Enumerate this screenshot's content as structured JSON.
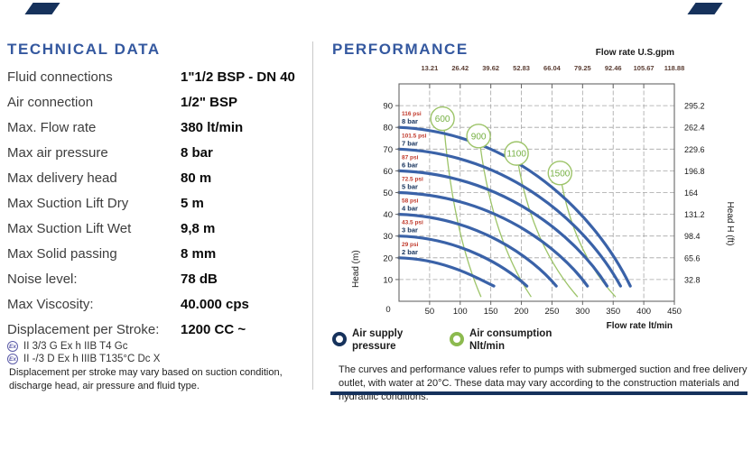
{
  "colors": {
    "accent": "#34589f",
    "navy": "#16325c",
    "pressure_curve": "#3a62a8",
    "consumption_green": "#9dc469",
    "consumption_text": "#76b043",
    "psi_label": "#c0392b",
    "bar_label": "#16325c",
    "top_tick_text": "#5a3c32",
    "grid": "#a5a5a5",
    "plot_border": "#666666"
  },
  "technical": {
    "title": "TECHNICAL DATA",
    "rows": [
      {
        "label": "Fluid connections",
        "value": "1\"1/2 BSP - DN 40"
      },
      {
        "label": "Air connection",
        "value": "1/2\" BSP"
      },
      {
        "label": "Max. Flow rate",
        "value": "380 lt/min"
      },
      {
        "label": "Max air pressure",
        "value": "8 bar"
      },
      {
        "label": "Max delivery head",
        "value": "80 m"
      },
      {
        "label": "Max Suction Lift Dry",
        "value": "5 m"
      },
      {
        "label": "Max Suction Lift Wet",
        "value": "9,8 m"
      },
      {
        "label": "Max Solid passing",
        "value": "8 mm"
      },
      {
        "label": "Noise level:",
        "value": "78 dB"
      },
      {
        "label": "Max Viscosity:",
        "value": "40.000 cps"
      },
      {
        "label": "Displacement per Stroke:",
        "value": "1200 CC ~"
      }
    ],
    "atex": [
      {
        "symbol": "Ex",
        "text": "II 3/3 G Ex h IIB T4 Gc"
      },
      {
        "symbol": "Ex",
        "text": "II -/3 D Ex h IIIB T135°C Dc X"
      }
    ],
    "note": "Displacement per stroke may vary based on suction condition, discharge head, air pressure and fluid type."
  },
  "performance": {
    "title": "PERFORMANCE",
    "legend": {
      "supply": {
        "line1": "Air supply",
        "line2": "pressure"
      },
      "consumption": {
        "line1": "Air consumption",
        "line2": "Nlt/min"
      }
    },
    "footnote": "The curves and performance values refer to pumps with submerged suction and free delivery outlet, with water at 20°C. These data may vary according to the construction materials and hydraulic conditions."
  },
  "chart_data": {
    "type": "line",
    "x_axis_bottom": {
      "label": "Flow rate  lt/min",
      "min": 0,
      "max": 450,
      "ticks": [
        50,
        100,
        150,
        200,
        250,
        300,
        350,
        400,
        450
      ],
      "origin_label": "0"
    },
    "x_axis_top": {
      "label": "Flow rate U.S.gpm",
      "ticks": [
        "13.21",
        "26.42",
        "39.62",
        "52.83",
        "66.04",
        "79.25",
        "92.46",
        "105.67",
        "118.88"
      ]
    },
    "y_axis_left": {
      "label": "Head (m)",
      "min": 0,
      "max": 100,
      "ticks": [
        10,
        20,
        30,
        40,
        50,
        60,
        70,
        80,
        90
      ]
    },
    "y_axis_right": {
      "label": "Head H (ft)",
      "ticks": [
        "295.2",
        "262.4",
        "229.6",
        "196.8",
        "164",
        "131.2",
        "98.4",
        "65.6",
        "32.8"
      ],
      "tick_heads_m": [
        90,
        80,
        70,
        60,
        50,
        40,
        30,
        20,
        10
      ]
    },
    "grid": true,
    "series": [
      {
        "name": "8 bar",
        "psi": "116 psi",
        "start_head_m": 80,
        "end_flow_lt_min": 378,
        "end_head_m": 7
      },
      {
        "name": "7 bar",
        "psi": "101.5 psi",
        "start_head_m": 70,
        "end_flow_lt_min": 362,
        "end_head_m": 7
      },
      {
        "name": "6 bar",
        "psi": "87 psi",
        "start_head_m": 60,
        "end_flow_lt_min": 340,
        "end_head_m": 7
      },
      {
        "name": "5 bar",
        "psi": "72.5 psi",
        "start_head_m": 50,
        "end_flow_lt_min": 308,
        "end_head_m": 7
      },
      {
        "name": "4 bar",
        "psi": "58 psi",
        "start_head_m": 40,
        "end_flow_lt_min": 257,
        "end_head_m": 7
      },
      {
        "name": "3 bar",
        "psi": "43.5 psi",
        "start_head_m": 30,
        "end_flow_lt_min": 209,
        "end_head_m": 7
      },
      {
        "name": "2 bar",
        "psi": "29 psi",
        "start_head_m": 20,
        "end_flow_lt_min": 155,
        "end_head_m": 7
      }
    ],
    "consumption_lines": [
      {
        "name": "600",
        "label_flow": 71,
        "label_head_m": 84,
        "end_flow_lt_min": 134
      },
      {
        "name": "900",
        "label_flow": 130,
        "label_head_m": 76,
        "end_flow_lt_min": 216
      },
      {
        "name": "1100",
        "label_flow": 192,
        "label_head_m": 68,
        "end_flow_lt_min": 292
      },
      {
        "name": "1500",
        "label_flow": 263,
        "label_head_m": 59,
        "end_flow_lt_min": 354
      }
    ]
  }
}
